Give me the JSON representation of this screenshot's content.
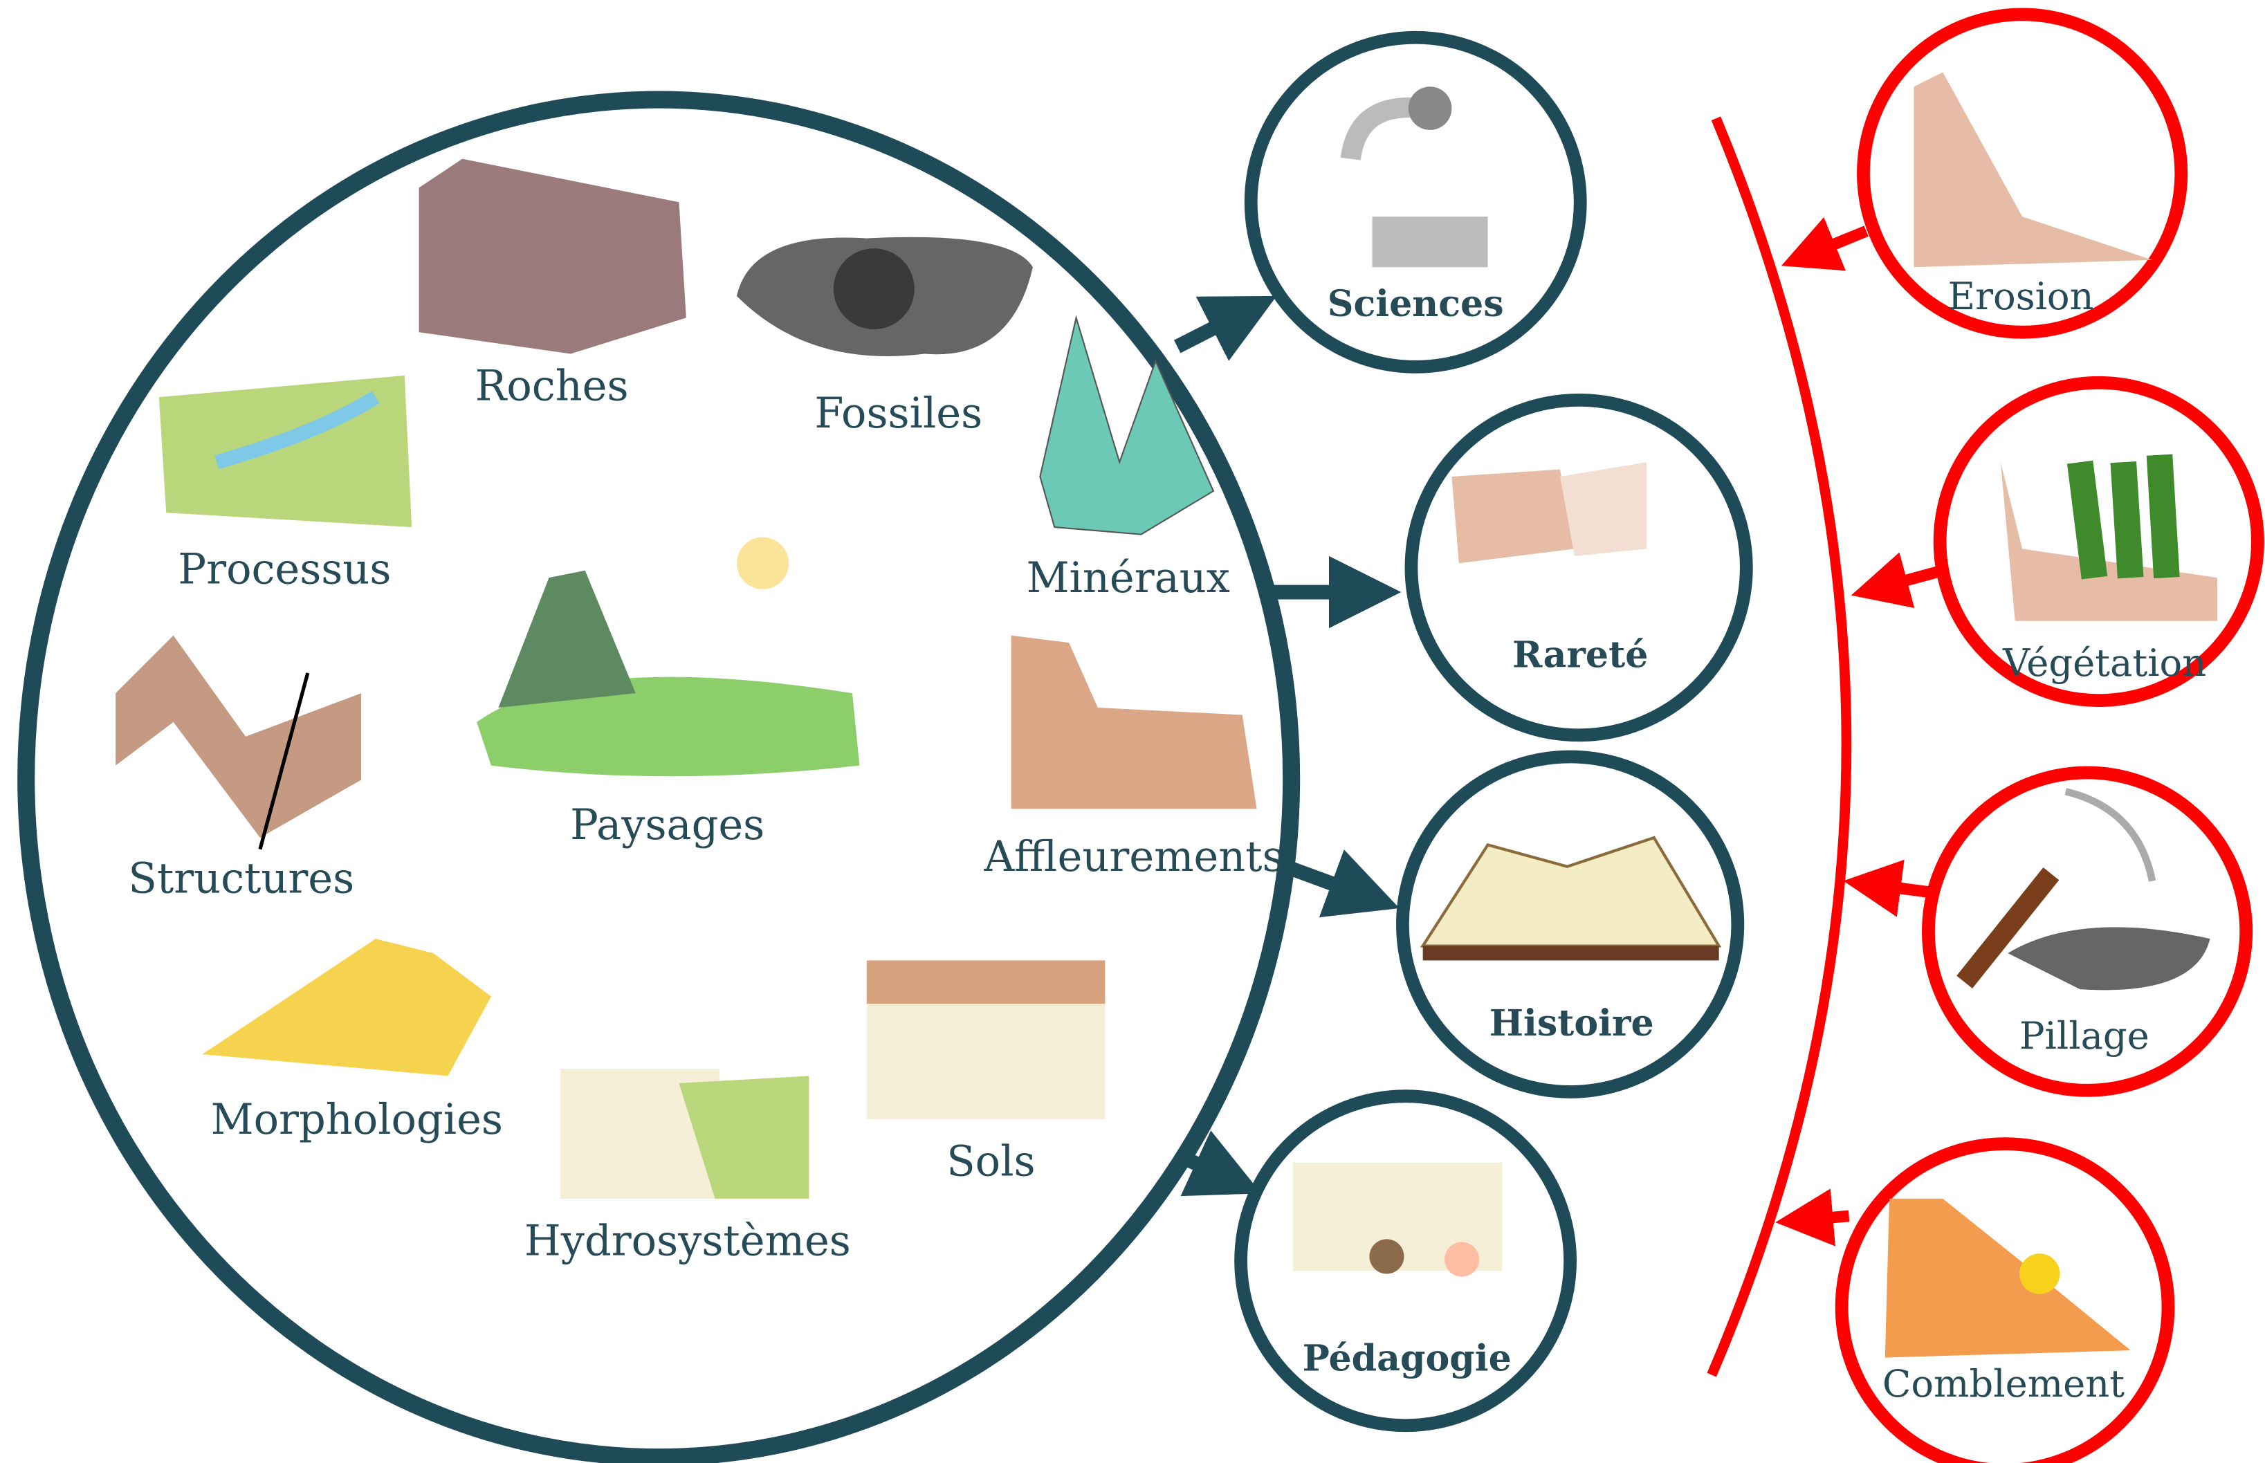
{
  "themes": [
    "Roches",
    "Fossiles",
    "Processus",
    "Minéraux",
    "Paysages",
    "Structures",
    "Affleurements",
    "Morphologies",
    "Sols",
    "Hydrosystèmes"
  ],
  "values": [
    "Sciences",
    "Rareté",
    "Histoire",
    "Pédagogie"
  ],
  "threats": [
    "Erosion",
    "Végétation",
    "Pillage",
    "Comblement"
  ]
}
